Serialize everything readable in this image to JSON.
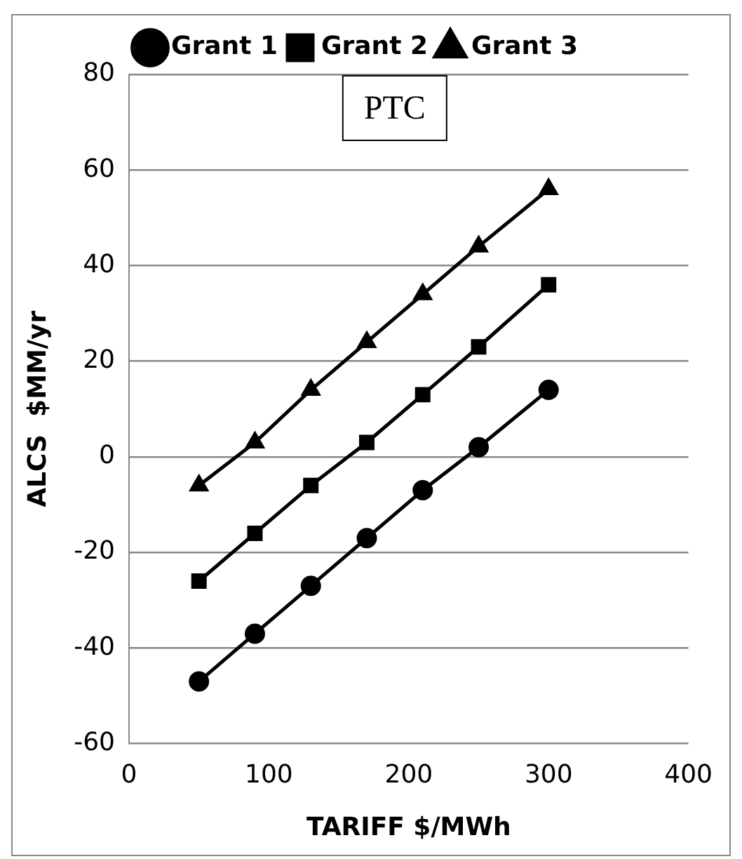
{
  "chart_data": {
    "type": "line",
    "xlabel": "TARIFF $/MWh",
    "ylabel": "ALCS  $MM/yr",
    "annotations": [
      "PTC"
    ],
    "x": [
      50,
      90,
      130,
      170,
      210,
      250,
      300
    ],
    "series": [
      {
        "name": "Grant 1",
        "color": "#000000",
        "marker": "circle",
        "values": [
          -47,
          -37,
          -27,
          -17,
          -7,
          2,
          14
        ]
      },
      {
        "name": "Grant 2",
        "color": "#000000",
        "marker": "square",
        "values": [
          -26,
          -16,
          -6,
          3,
          13,
          23,
          36
        ]
      },
      {
        "name": "Grant 3",
        "color": "#000000",
        "marker": "triangle",
        "values": [
          -6,
          3,
          14,
          24,
          34,
          44,
          56
        ]
      }
    ],
    "xlim": [
      0,
      400
    ],
    "xticks": [
      0,
      100,
      200,
      300,
      400
    ],
    "ylim": [
      -60,
      80
    ],
    "yticks": [
      -60,
      -40,
      -20,
      0,
      20,
      40,
      60,
      80
    ],
    "grid": "y",
    "legend": "top",
    "line_style": "solid"
  }
}
